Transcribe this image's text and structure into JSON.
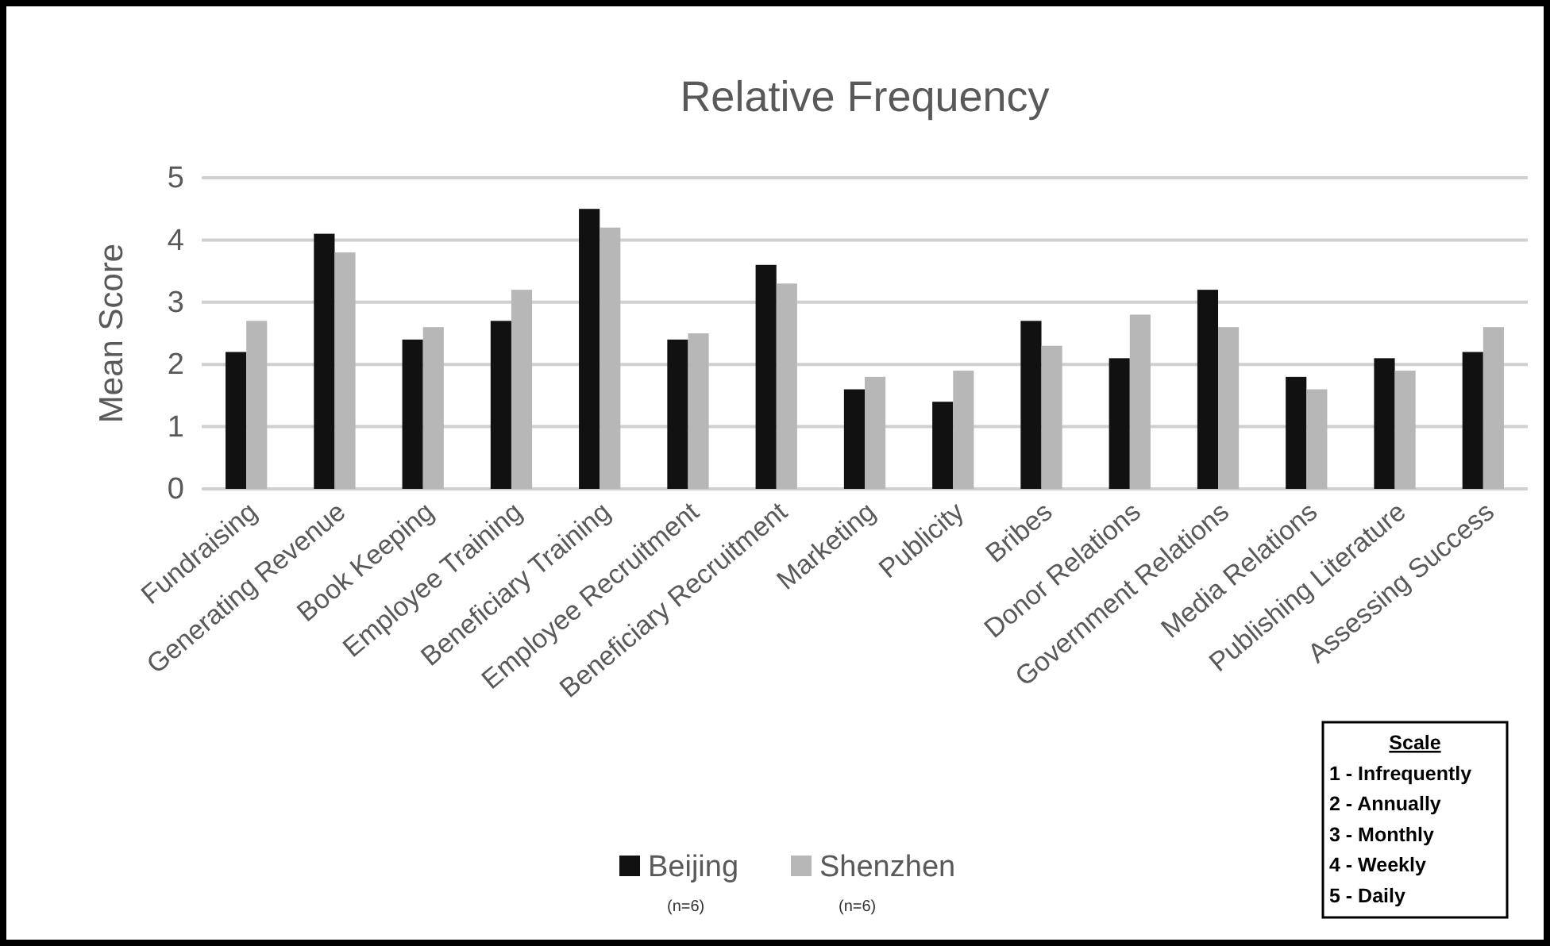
{
  "chart_data": {
    "type": "bar",
    "title": "Relative Frequency",
    "ylabel": "Mean Score",
    "categories": [
      "Fundraising",
      "Generating Revenue",
      "Book Keeping",
      "Employee Training",
      "Beneficiary Training",
      "Employee Recruitment",
      "Beneficiary Recruitment",
      "Marketing",
      "Publicity",
      "Bribes",
      "Donor Relations",
      "Government Relations",
      "Media Relations",
      "Publishing Literature",
      "Assessing Success"
    ],
    "series": [
      {
        "name": "Beijing",
        "color": "#111111",
        "values": [
          2.2,
          4.1,
          2.4,
          2.7,
          4.5,
          2.4,
          3.6,
          1.6,
          1.4,
          2.7,
          2.1,
          3.2,
          1.8,
          2.1,
          2.2
        ]
      },
      {
        "name": "Shenzhen",
        "color": "#b7b7b7",
        "values": [
          2.7,
          3.8,
          2.6,
          3.2,
          4.2,
          2.5,
          3.3,
          1.8,
          1.9,
          2.3,
          2.8,
          2.6,
          1.6,
          1.9,
          2.6
        ]
      }
    ],
    "ylim": [
      0,
      5
    ],
    "yticks": [
      0,
      1,
      2,
      3,
      4,
      5
    ],
    "grid": "y",
    "legend": "bottom",
    "annotations": [
      "(n=6)",
      "(n=6)",
      "Scale",
      "1 - Infrequently",
      "2 - Annually",
      "3 - Monthly",
      "4 - Weekly",
      "5 - Daily"
    ]
  }
}
